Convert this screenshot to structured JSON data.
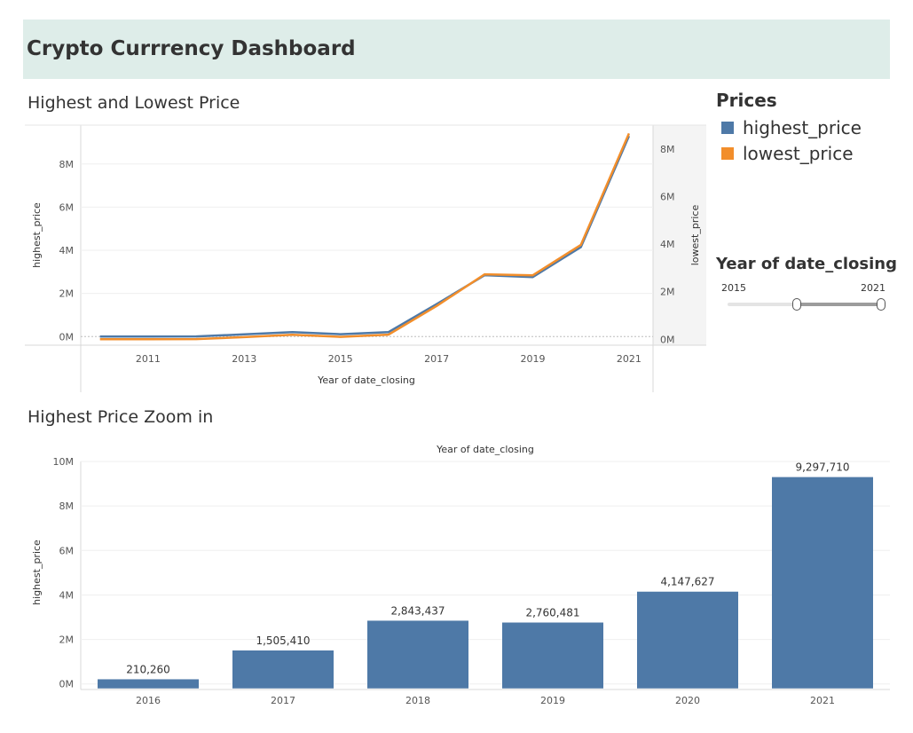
{
  "header": {
    "title": "Crypto Currrency Dashboard"
  },
  "sections": {
    "line_title": "Highest and Lowest Price",
    "bar_title": "Highest Price Zoom in"
  },
  "legend": {
    "title": "Prices",
    "items": [
      {
        "label": "highest_price",
        "color": "#4e79a7"
      },
      {
        "label": "lowest_price",
        "color": "#f28e2b"
      }
    ]
  },
  "filter": {
    "title": "Year of date_closing",
    "min_label": "2015",
    "max_label": "2021",
    "range": [
      2015,
      2021
    ]
  },
  "chart_data": [
    {
      "type": "line",
      "title": "Highest and Lowest Price",
      "xlabel": "Year of date_closing",
      "ylabel": "highest_price",
      "y2label": "lowest_price",
      "x": [
        2010,
        2011,
        2012,
        2013,
        2014,
        2015,
        2016,
        2017,
        2018,
        2019,
        2020,
        2021
      ],
      "x_ticks": [
        "2011",
        "2013",
        "2015",
        "2017",
        "2019",
        "2021"
      ],
      "y_ticks": [
        "0M",
        "2M",
        "4M",
        "6M",
        "8M"
      ],
      "y2_ticks": [
        "0M",
        "2M",
        "4M",
        "6M",
        "8M"
      ],
      "ylim": [
        -400000,
        9800000
      ],
      "y2lim": [
        -250000,
        9000000
      ],
      "xlim": [
        2009.6,
        2021.5
      ],
      "series": [
        {
          "name": "highest_price",
          "color": "#4e79a7",
          "values": [
            0,
            3000,
            6000,
            100000,
            210000,
            110000,
            210260,
            1505410,
            2843437,
            2760481,
            4147627,
            9297710
          ]
        },
        {
          "name": "lowest_price",
          "color": "#f28e2b",
          "values": [
            0,
            2800,
            5500,
            90000,
            190000,
            100000,
            195000,
            1400000,
            2730000,
            2690000,
            3970000,
            8650000
          ]
        }
      ],
      "grid": true
    },
    {
      "type": "bar",
      "title": "Highest Price Zoom in",
      "xlabel": "Year of date_closing",
      "ylabel": "highest_price",
      "categories": [
        "2016",
        "2017",
        "2018",
        "2019",
        "2020",
        "2021"
      ],
      "values": [
        210260,
        1505410,
        2843437,
        2760481,
        4147627,
        9297710
      ],
      "labels": [
        "210,260",
        "1,505,410",
        "2,843,437",
        "2,760,481",
        "4,147,627",
        "9,297,710"
      ],
      "y_ticks": [
        "0M",
        "2M",
        "4M",
        "6M",
        "8M",
        "10M"
      ],
      "ylim": [
        -250000,
        10000000
      ],
      "color": "#4e79a7",
      "grid": true
    }
  ]
}
